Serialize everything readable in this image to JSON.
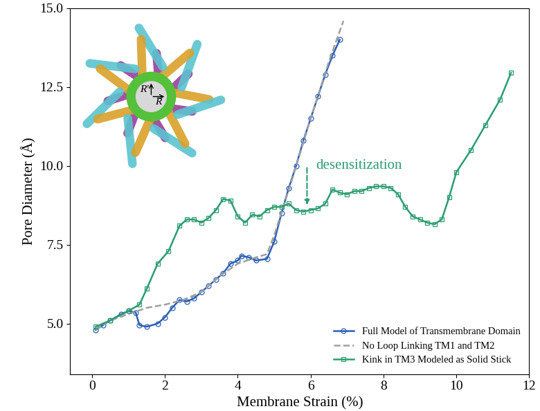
{
  "chart_data": {
    "type": "line",
    "xlabel": "Membrane Strain (%)",
    "ylabel": "Pore Diameter (Å)",
    "xlim": [
      -0.6,
      12
    ],
    "xticks": [
      0,
      2,
      4,
      6,
      8,
      10,
      12
    ],
    "ylim": [
      3.4,
      15
    ],
    "yticks": [
      {
        "value": 5,
        "label": "5.0"
      },
      {
        "value": 7.5,
        "label": "7.5"
      },
      {
        "value": 10,
        "label": "10.0"
      },
      {
        "value": 12.5,
        "label": "12.5"
      },
      {
        "value": 15,
        "label": "15.0"
      }
    ],
    "legend": "lower right",
    "series": [
      {
        "name": "Full Model of Transmembrane Domain",
        "color": "#2b5fb4",
        "marker": "o",
        "line_style": "solid",
        "x": [
          0.1,
          0.3,
          0.5,
          0.8,
          1.0,
          1.2,
          1.3,
          1.5,
          1.8,
          2.0,
          2.2,
          2.4,
          2.6,
          2.8,
          3.0,
          3.2,
          3.4,
          3.6,
          3.8,
          4.0,
          4.1,
          4.3,
          4.5,
          4.8,
          5.0,
          5.2,
          5.4,
          5.6,
          5.8,
          6.0,
          6.2,
          6.4,
          6.6,
          6.8
        ],
        "values": [
          4.8,
          4.95,
          5.1,
          5.3,
          5.4,
          5.35,
          4.95,
          4.9,
          5.0,
          5.2,
          5.5,
          5.75,
          5.7,
          5.8,
          6.0,
          6.2,
          6.4,
          6.6,
          6.9,
          7.0,
          7.15,
          7.1,
          7.0,
          7.05,
          7.6,
          8.5,
          9.3,
          10.0,
          10.8,
          11.5,
          12.2,
          12.9,
          13.5,
          14.0
        ]
      },
      {
        "name": "No Loop Linking TM1 and TM2",
        "color": "#a0a0a0",
        "line_style": "dashed",
        "x": [
          0.1,
          0.5,
          1.0,
          1.5,
          2.0,
          2.5,
          3.0,
          3.5,
          4.0,
          4.5,
          4.8,
          5.0,
          5.5,
          6.0,
          6.5,
          6.9
        ],
        "values": [
          4.8,
          5.1,
          5.3,
          5.5,
          5.6,
          5.75,
          6.0,
          6.5,
          6.9,
          7.1,
          7.2,
          7.8,
          9.6,
          11.5,
          13.3,
          14.6
        ]
      },
      {
        "name": "Kink in TM3 Modeled as Solid Stick",
        "color": "#2a9d6f",
        "marker": "s",
        "line_style": "solid",
        "x": [
          0.1,
          0.5,
          1.0,
          1.3,
          1.5,
          1.8,
          2.1,
          2.4,
          2.6,
          2.8,
          3.0,
          3.2,
          3.4,
          3.6,
          3.8,
          4.0,
          4.2,
          4.4,
          4.6,
          4.8,
          5.0,
          5.2,
          5.4,
          5.6,
          5.8,
          6.0,
          6.2,
          6.4,
          6.6,
          6.8,
          7.0,
          7.2,
          7.4,
          7.6,
          7.8,
          8.0,
          8.2,
          8.4,
          8.6,
          8.8,
          9.0,
          9.2,
          9.4,
          9.6,
          9.8,
          10.0,
          10.4,
          10.8,
          11.2,
          11.5
        ],
        "values": [
          4.9,
          5.1,
          5.4,
          5.6,
          6.1,
          6.9,
          7.3,
          8.1,
          8.3,
          8.3,
          8.2,
          8.35,
          8.6,
          8.95,
          8.9,
          8.4,
          8.2,
          8.45,
          8.4,
          8.6,
          8.7,
          8.7,
          8.8,
          8.6,
          8.55,
          8.6,
          8.65,
          8.8,
          9.25,
          9.15,
          9.1,
          9.2,
          9.2,
          9.3,
          9.35,
          9.35,
          9.3,
          9.1,
          8.7,
          8.4,
          8.3,
          8.2,
          8.15,
          8.3,
          9.0,
          9.8,
          10.5,
          11.3,
          12.1,
          12.95
        ]
      }
    ],
    "annotations": [
      {
        "text": "desensitization",
        "x": 5.9,
        "y": 10.0,
        "arrow_to_y": 8.7,
        "color": "#2a9d6f"
      }
    ],
    "inset_labels": [
      "R'",
      "R"
    ]
  }
}
